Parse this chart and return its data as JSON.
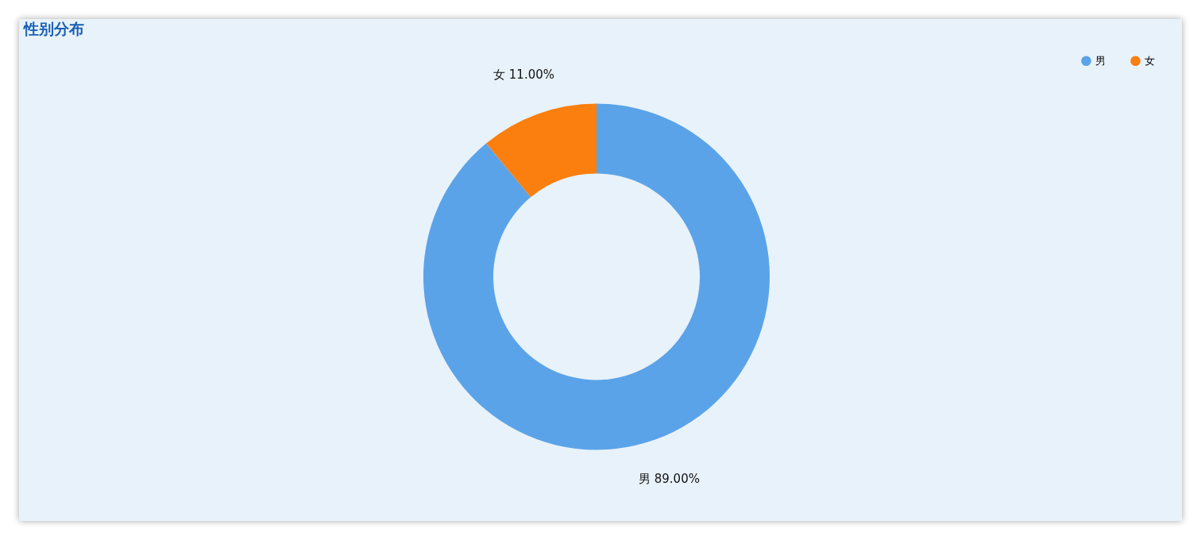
{
  "chart_data": {
    "type": "donut",
    "title": "性别分布",
    "categories": [
      "男",
      "女"
    ],
    "values": [
      89,
      11
    ],
    "colors": [
      "#5ba3e8",
      "#fa7f0f"
    ],
    "value_labels": [
      "89.00%",
      "11.00%"
    ],
    "legend": "top right"
  }
}
